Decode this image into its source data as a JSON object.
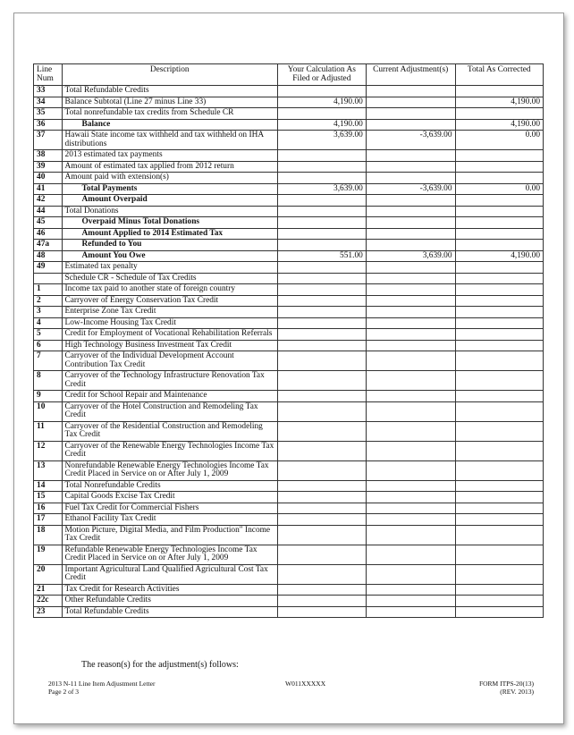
{
  "table": {
    "headers": [
      "Line Num",
      "Description",
      "Your Calculation As Filed or Adjusted",
      "Current Adjustment(s)",
      "Total As Corrected"
    ],
    "rows": [
      {
        "num": "33",
        "desc": "Total Refundable Credits",
        "bold": false,
        "calc": "",
        "adj": "",
        "total": ""
      },
      {
        "num": "34",
        "desc": "Balance Subtotal (Line 27 minus Line 33)",
        "bold": false,
        "calc": "4,190.00",
        "adj": "",
        "total": "4,190.00"
      },
      {
        "num": "35",
        "desc": "Total nonrefundable tax credits from Schedule CR",
        "bold": false,
        "calc": "",
        "adj": "",
        "total": ""
      },
      {
        "num": "36",
        "desc": "Balance",
        "bold": true,
        "calc": "4,190.00",
        "adj": "",
        "total": "4,190.00"
      },
      {
        "num": "37",
        "desc": "Hawaii State income tax withheld and tax withheld on IHA distributions",
        "bold": false,
        "calc": "3,639.00",
        "adj": "-3,639.00",
        "total": "0.00"
      },
      {
        "num": "38",
        "desc": "2013 estimated tax payments",
        "bold": false,
        "calc": "",
        "adj": "",
        "total": ""
      },
      {
        "num": "39",
        "desc": "Amount of estimated tax applied from 2012 return",
        "bold": false,
        "calc": "",
        "adj": "",
        "total": ""
      },
      {
        "num": "40",
        "desc": "Amount paid with extension(s)",
        "bold": false,
        "calc": "",
        "adj": "",
        "total": ""
      },
      {
        "num": "41",
        "desc": "Total Payments",
        "bold": true,
        "calc": "3,639.00",
        "adj": "-3,639.00",
        "total": "0.00"
      },
      {
        "num": "42",
        "desc": "Amount Overpaid",
        "bold": true,
        "calc": "",
        "adj": "",
        "total": ""
      },
      {
        "num": "44",
        "desc": "Total Donations",
        "bold": false,
        "calc": "",
        "adj": "",
        "total": ""
      },
      {
        "num": "45",
        "desc": "Overpaid Minus Total Donations",
        "bold": true,
        "calc": "",
        "adj": "",
        "total": ""
      },
      {
        "num": "46",
        "desc": "Amount Applied to 2014 Estimated Tax",
        "bold": true,
        "calc": "",
        "adj": "",
        "total": ""
      },
      {
        "num": "47a",
        "desc": "Refunded to You",
        "bold": true,
        "calc": "",
        "adj": "",
        "total": ""
      },
      {
        "num": "48",
        "desc": "Amount You Owe",
        "bold": true,
        "calc": "551.00",
        "adj": "3,639.00",
        "total": "4,190.00"
      },
      {
        "num": "49",
        "desc": "Estimated tax penalty",
        "bold": false,
        "calc": "",
        "adj": "",
        "total": ""
      },
      {
        "num": "",
        "desc": "Schedule CR - Schedule of Tax Credits",
        "bold": false,
        "calc": "",
        "adj": "",
        "total": ""
      },
      {
        "num": "1",
        "desc": "Income tax paid to another state of foreign country",
        "bold": false,
        "calc": "",
        "adj": "",
        "total": ""
      },
      {
        "num": "2",
        "desc": "Carryover of Energy Conservation Tax Credit",
        "bold": false,
        "calc": "",
        "adj": "",
        "total": ""
      },
      {
        "num": "3",
        "desc": "Enterprise Zone Tax Credit",
        "bold": false,
        "calc": "",
        "adj": "",
        "total": ""
      },
      {
        "num": "4",
        "desc": "Low-Income Housing Tax Credit",
        "bold": false,
        "calc": "",
        "adj": "",
        "total": ""
      },
      {
        "num": "5",
        "desc": "Credit for Employment of Vocational Rehabilitation Referrals",
        "bold": false,
        "calc": "",
        "adj": "",
        "total": ""
      },
      {
        "num": "6",
        "desc": "High Technology Business Investment Tax Credit",
        "bold": false,
        "calc": "",
        "adj": "",
        "total": ""
      },
      {
        "num": "7",
        "desc": "Carryover of the Individual Development Account Contribution Tax Credit",
        "bold": false,
        "calc": "",
        "adj": "",
        "total": ""
      },
      {
        "num": "8",
        "desc": "Carryover of the Technology Infrastructure Renovation Tax Credit",
        "bold": false,
        "calc": "",
        "adj": "",
        "total": ""
      },
      {
        "num": "9",
        "desc": "Credit for School Repair and Maintenance",
        "bold": false,
        "calc": "",
        "adj": "",
        "total": ""
      },
      {
        "num": "10",
        "desc": "Carryover of the Hotel Construction and Remodeling Tax Credit",
        "bold": false,
        "calc": "",
        "adj": "",
        "total": ""
      },
      {
        "num": "11",
        "desc": "Carryover of the Residential Construction and Remodeling Tax Credit",
        "bold": false,
        "calc": "",
        "adj": "",
        "total": ""
      },
      {
        "num": "12",
        "desc": "Carryover of the Renewable Energy Technologies Income Tax Credit",
        "bold": false,
        "calc": "",
        "adj": "",
        "total": ""
      },
      {
        "num": "13",
        "desc": "Nonrefundable Renewable Energy Technologies Income Tax Credit Placed in Service on or After July 1, 2009",
        "bold": false,
        "calc": "",
        "adj": "",
        "total": ""
      },
      {
        "num": "14",
        "desc": "Total Nonrefundable Credits",
        "bold": false,
        "calc": "",
        "adj": "",
        "total": ""
      },
      {
        "num": "15",
        "desc": "Capital Goods Excise Tax Credit",
        "bold": false,
        "calc": "",
        "adj": "",
        "total": ""
      },
      {
        "num": "16",
        "desc": "Fuel Tax Credit for Commercial Fishers",
        "bold": false,
        "calc": "",
        "adj": "",
        "total": ""
      },
      {
        "num": "17",
        "desc": "Ethanol Facility Tax Credit",
        "bold": false,
        "calc": "",
        "adj": "",
        "total": ""
      },
      {
        "num": "18",
        "desc": "Motion Picture, Digital Media, and Film Production\" Income Tax Credit",
        "bold": false,
        "calc": "",
        "adj": "",
        "total": ""
      },
      {
        "num": "19",
        "desc": "Refundable Renewable Energy Technologies Income Tax Credit Placed in Service on or After July 1, 2009",
        "bold": false,
        "calc": "",
        "adj": "",
        "total": ""
      },
      {
        "num": "20",
        "desc": "Important Agricultural Land Qualified Agricultural Cost Tax Credit",
        "bold": false,
        "calc": "",
        "adj": "",
        "total": ""
      },
      {
        "num": "21",
        "desc": "Tax Credit for Research Activities",
        "bold": false,
        "calc": "",
        "adj": "",
        "total": ""
      },
      {
        "num": "22c",
        "desc": "Other Refundable Credits",
        "bold": false,
        "calc": "",
        "adj": "",
        "total": ""
      },
      {
        "num": "23",
        "desc": "Total Refundable Credits",
        "bold": false,
        "calc": "",
        "adj": "",
        "total": ""
      }
    ]
  },
  "reason_text": "The reason(s) for the adjustment(s) follows:",
  "footer": {
    "letter_title": "2013 N-11 Line Item Adjustment Letter",
    "page": "Page 2 of 3",
    "code": "W011XXXXX",
    "form": "FORM ITPS-20(13)",
    "rev": "(REV. 2013)"
  }
}
